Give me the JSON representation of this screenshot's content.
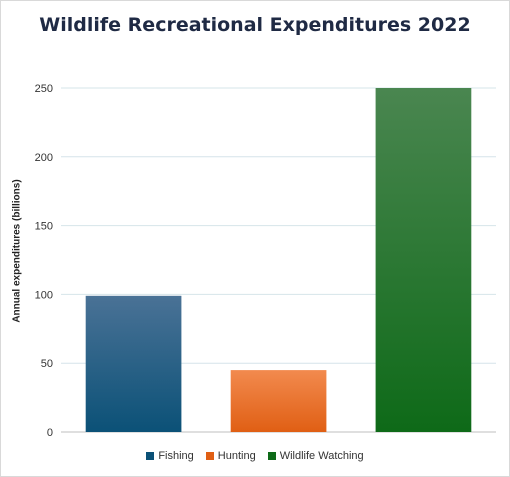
{
  "chart_data": {
    "type": "bar",
    "title": "Wildlife Recreational Expenditures 2022",
    "xlabel": "",
    "ylabel": "Annual expenditures (billions)",
    "categories": [
      "Fishing",
      "Hunting",
      "Wildlife Watching"
    ],
    "values": [
      99,
      45,
      250
    ],
    "ylim": [
      0,
      250
    ],
    "yticks": [
      0,
      50,
      100,
      150,
      200,
      250
    ],
    "grid": true,
    "legend": "bottom",
    "colors": {
      "Fishing": [
        "#4a7296",
        "#0b5177"
      ],
      "Hunting": [
        "#f28a4e",
        "#e05f14"
      ],
      "Wildlife Watching": [
        "#4a8650",
        "#0e6a18"
      ]
    }
  }
}
